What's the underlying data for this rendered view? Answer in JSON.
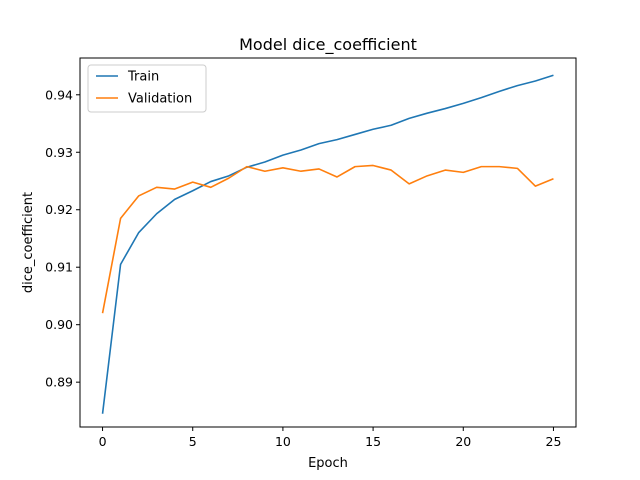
{
  "chart_data": {
    "type": "line",
    "title": "Model dice_coefficient",
    "xlabel": "Epoch",
    "ylabel": "dice_coefficient",
    "xlim": [
      -1.25,
      26.25
    ],
    "ylim": [
      0.8822,
      0.9464
    ],
    "x_ticks": [
      0,
      5,
      10,
      15,
      20,
      25
    ],
    "y_ticks": [
      0.89,
      0.9,
      0.91,
      0.92,
      0.93,
      0.94
    ],
    "grid": false,
    "legend_position": "upper-left",
    "x": [
      0,
      1,
      2,
      3,
      4,
      5,
      6,
      7,
      8,
      9,
      10,
      11,
      12,
      13,
      14,
      15,
      16,
      17,
      18,
      19,
      20,
      21,
      22,
      23,
      24,
      25
    ],
    "series": [
      {
        "name": "Train",
        "color": "#1f77b4",
        "values": [
          0.8845,
          0.9105,
          0.916,
          0.9193,
          0.9218,
          0.9233,
          0.9249,
          0.9259,
          0.9274,
          0.9283,
          0.9295,
          0.9304,
          0.9315,
          0.9322,
          0.9331,
          0.934,
          0.9347,
          0.9359,
          0.9368,
          0.9376,
          0.9385,
          0.9395,
          0.9406,
          0.9416,
          0.9424,
          0.9434
        ]
      },
      {
        "name": "Validation",
        "color": "#ff7f0e",
        "values": [
          0.902,
          0.9185,
          0.9224,
          0.9239,
          0.9236,
          0.9248,
          0.9239,
          0.9255,
          0.9275,
          0.9267,
          0.9273,
          0.9267,
          0.9271,
          0.9257,
          0.9275,
          0.9277,
          0.9269,
          0.9245,
          0.9259,
          0.9269,
          0.9265,
          0.9275,
          0.9275,
          0.9272,
          0.9241,
          0.9254
        ]
      }
    ]
  }
}
